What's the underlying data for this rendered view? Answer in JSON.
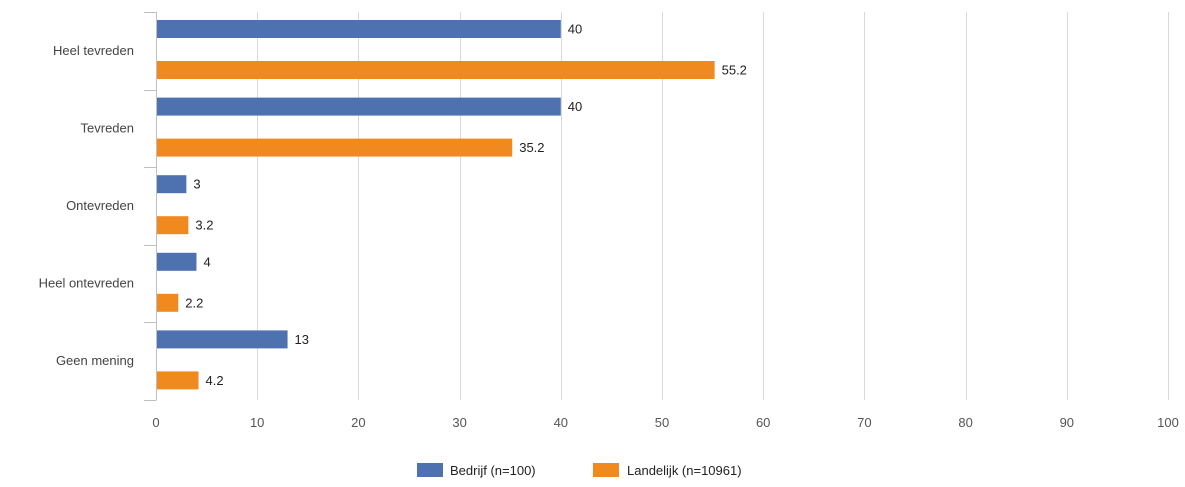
{
  "chart_data": {
    "type": "bar",
    "orientation": "horizontal",
    "categories": [
      "Heel tevreden",
      "Tevreden",
      "Ontevreden",
      "Heel ontevreden",
      "Geen mening"
    ],
    "series": [
      {
        "name": "Bedrijf (n=100)",
        "color": "#4e72b0",
        "values": [
          40,
          40,
          3,
          4,
          13
        ]
      },
      {
        "name": "Landelijk (n=10961)",
        "color": "#f08a1e",
        "values": [
          55.2,
          35.2,
          3.2,
          2.2,
          4.2
        ]
      }
    ],
    "value_labels": [
      [
        "40",
        "40",
        "3",
        "4",
        "13"
      ],
      [
        "55.2",
        "35.2",
        "3.2",
        "2.2",
        "4.2"
      ]
    ],
    "xticks": [
      "0",
      "10",
      "20",
      "30",
      "40",
      "50",
      "60",
      "70",
      "80",
      "90",
      "100"
    ],
    "xlim": [
      0,
      100
    ],
    "grid": true,
    "legend_position": "bottom",
    "title": "",
    "xlabel": "",
    "ylabel": ""
  }
}
